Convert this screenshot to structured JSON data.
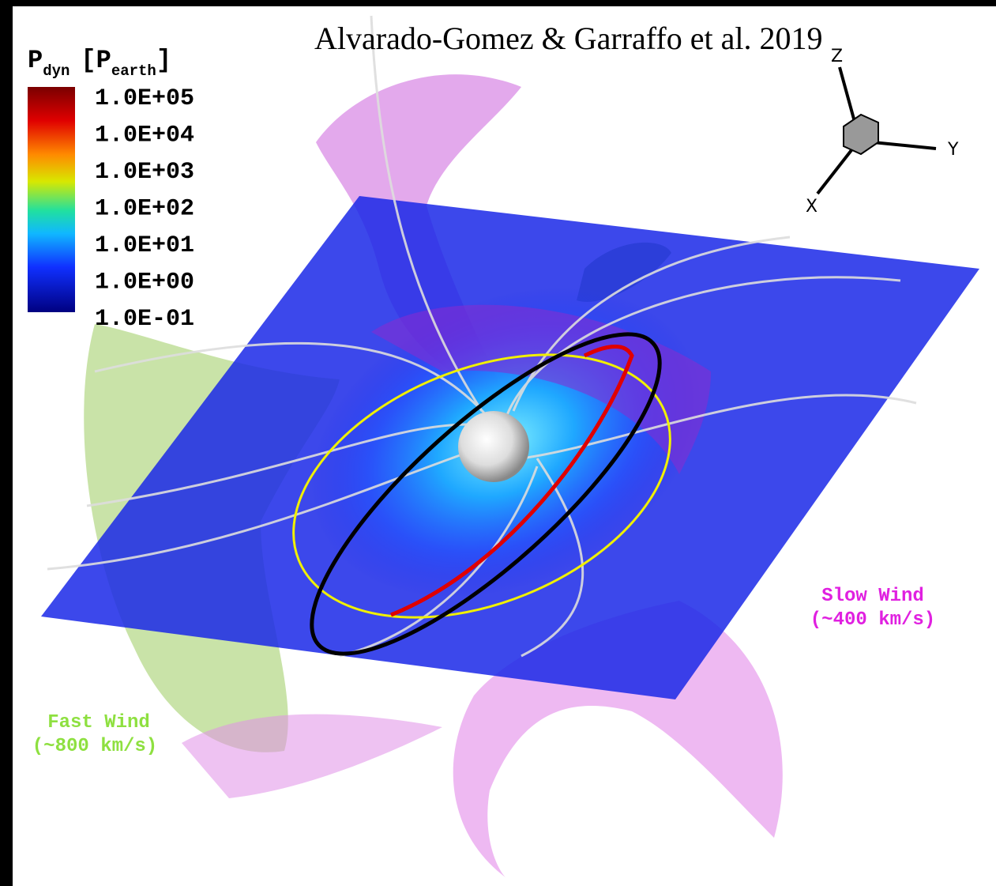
{
  "title": "Alvarado-Gomez & Garraffo et al. 2019",
  "colorbar": {
    "symbol": "P",
    "symbol_sub": "dyn",
    "unit_open": "[P",
    "unit_sub": "earth",
    "unit_close": "]",
    "ticks": [
      "1.0E+05",
      "1.0E+04",
      "1.0E+03",
      "1.0E+02",
      "1.0E+01",
      "1.0E+00",
      "1.0E-01"
    ]
  },
  "axes": {
    "z": "Z",
    "y": "Y",
    "x": "X"
  },
  "annotations": {
    "slow_wind": "Slow Wind",
    "slow_speed": "(~400 km/s)",
    "fast_wind": "Fast Wind",
    "fast_speed": "(~800 km/s)"
  }
}
